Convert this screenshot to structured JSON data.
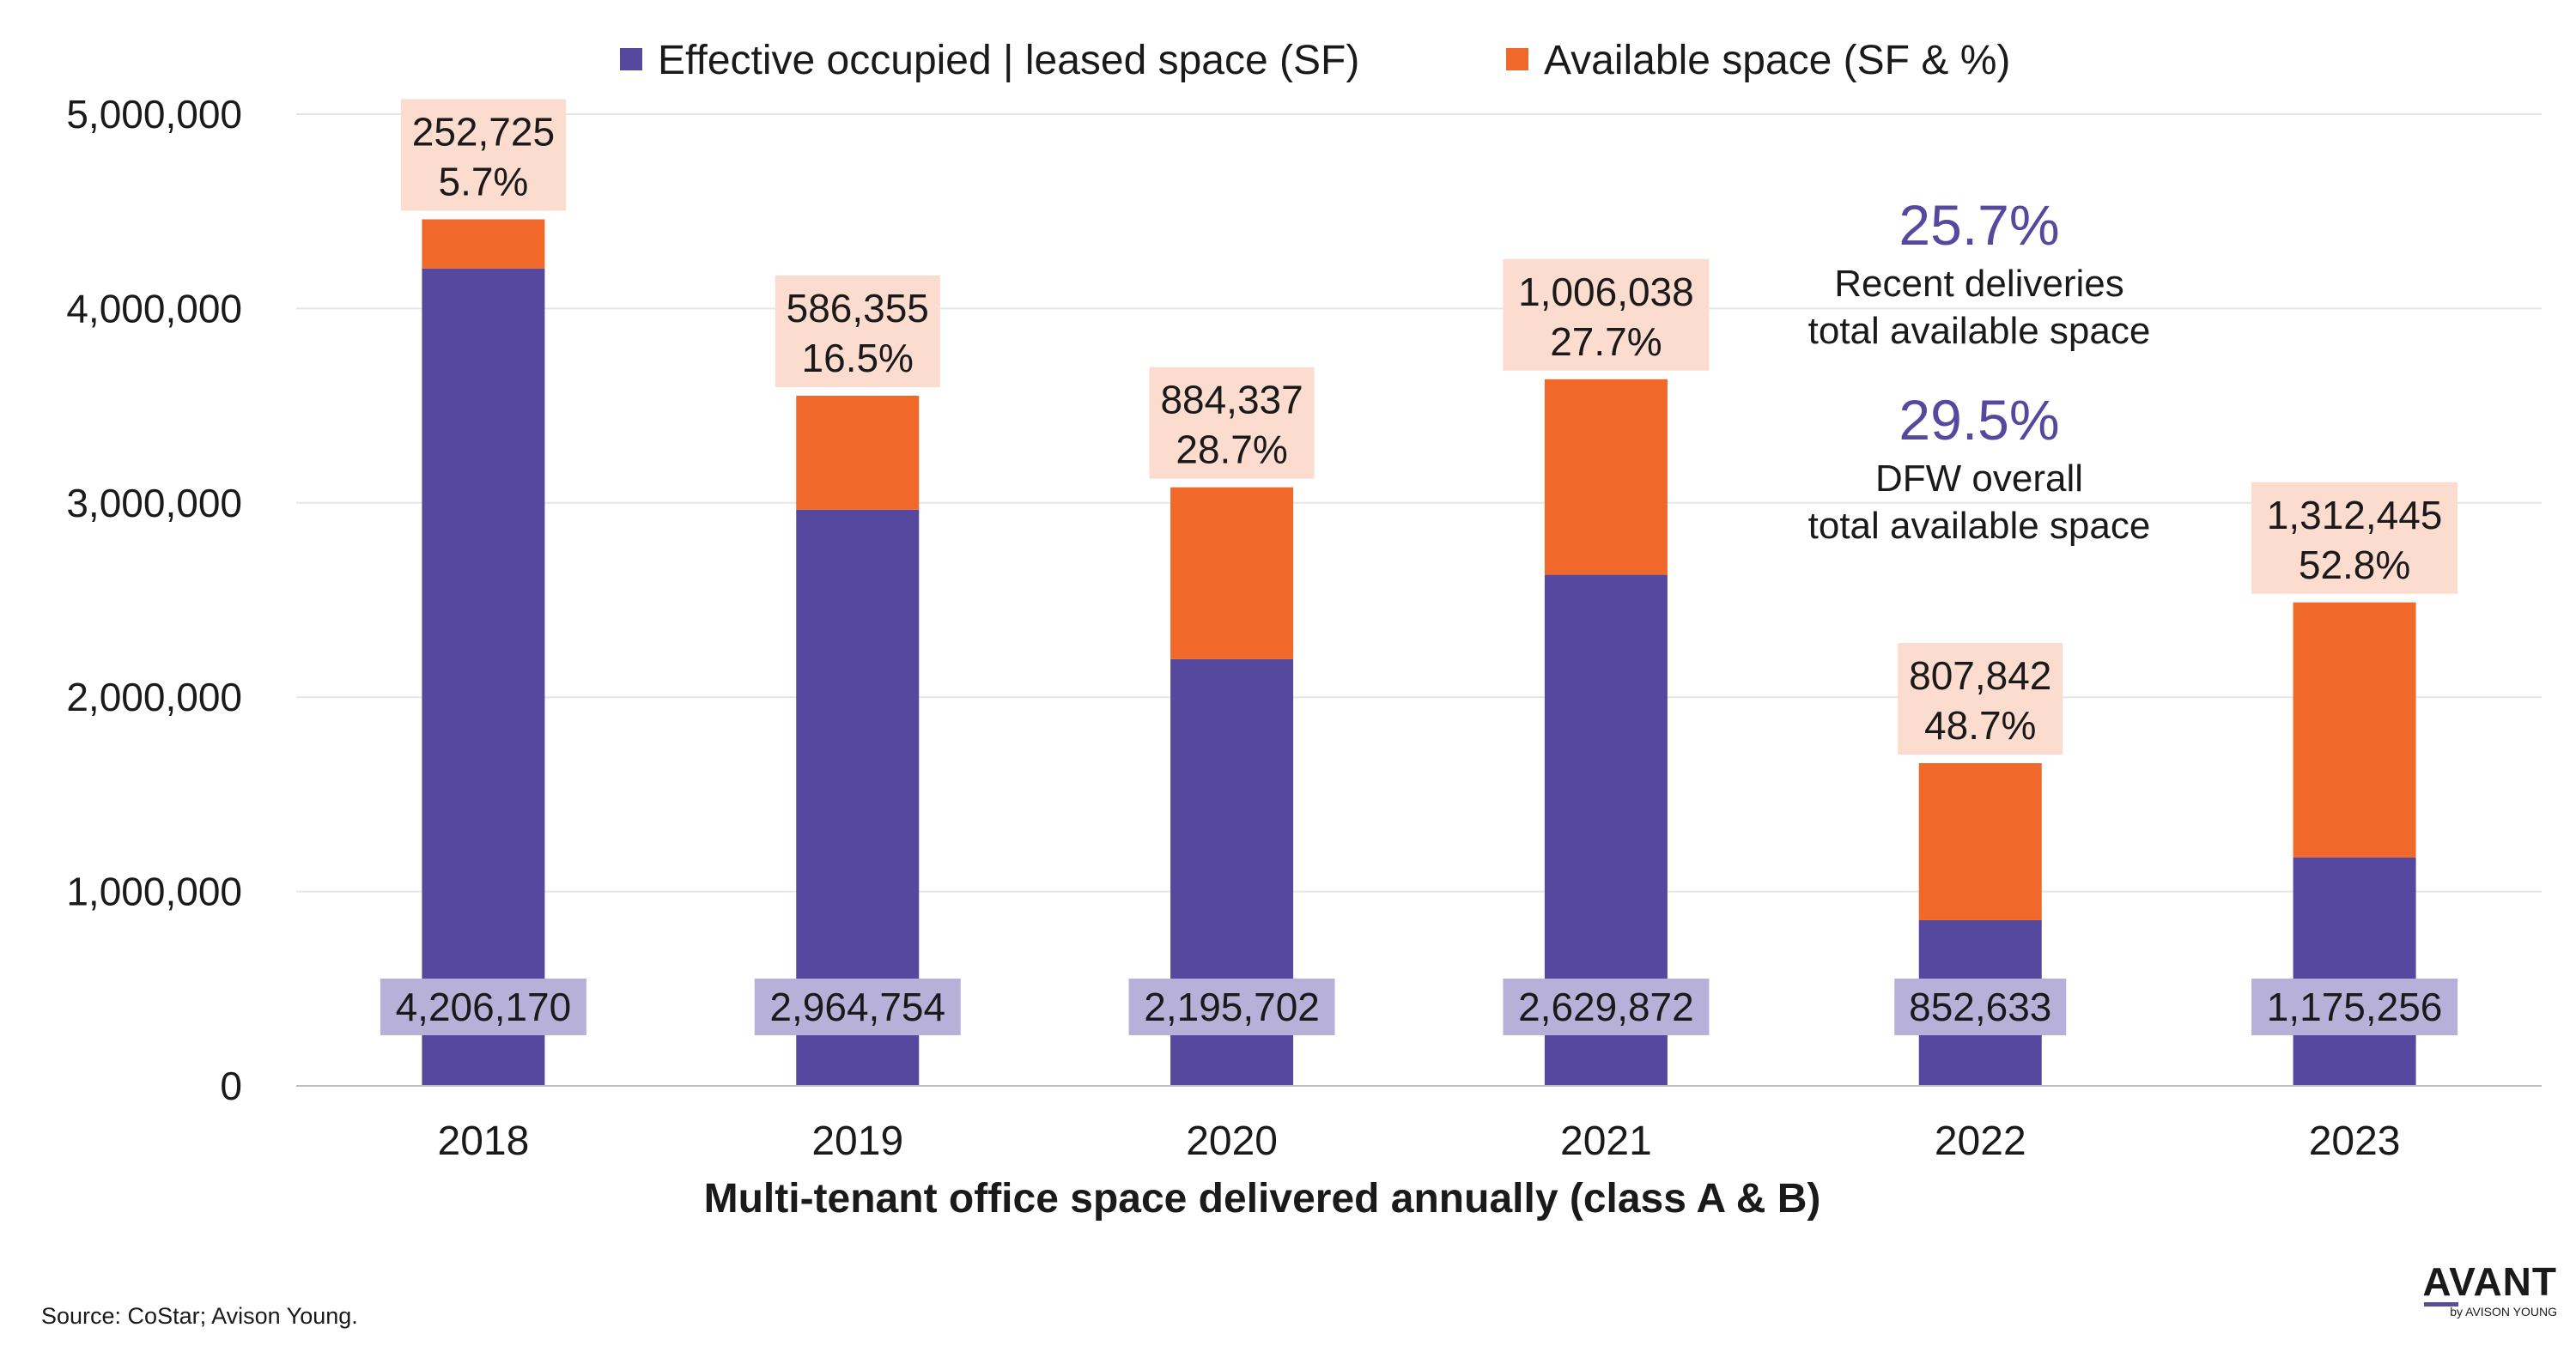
{
  "chart_data": {
    "type": "bar",
    "stacked": true,
    "categories": [
      "2018",
      "2019",
      "2020",
      "2021",
      "2022",
      "2023"
    ],
    "series": [
      {
        "name": "Effective occupied | leased space (SF)",
        "color": "#56489e",
        "label_bg": "#b7b1d9",
        "values": [
          4206170,
          2964754,
          2195702,
          2629872,
          852633,
          1175256
        ],
        "labels": [
          "4,206,170",
          "2,964,754",
          "2,195,702",
          "2,629,872",
          "852,633",
          "1,175,256"
        ]
      },
      {
        "name": "Available space (SF & %)",
        "color": "#f0682a",
        "label_bg": "#fbdccf",
        "values": [
          252725,
          586355,
          884337,
          1006038,
          807842,
          1312445
        ],
        "labels": [
          "252,725",
          "586,355",
          "884,337",
          "1,006,038",
          "807,842",
          "1,312,445"
        ],
        "percent_labels": [
          "5.7%",
          "16.5%",
          "28.7%",
          "27.7%",
          "48.7%",
          "52.8%"
        ]
      }
    ],
    "xlabel": "Multi-tenant office space delivered annually (class A & B)",
    "ylabel": "",
    "ylim": [
      0,
      5000000
    ],
    "yticks": [
      0,
      1000000,
      2000000,
      3000000,
      4000000,
      5000000
    ],
    "ytick_labels": [
      "0",
      "1,000,000",
      "2,000,000",
      "3,000,000",
      "4,000,000",
      "5,000,000"
    ],
    "grid": true,
    "legend_position": "top-center",
    "annotations": [
      {
        "value": "25.7%",
        "line1": "Recent deliveries",
        "line2": "total available space"
      },
      {
        "value": "29.5%",
        "line1": "DFW overall",
        "line2": "total available space"
      }
    ],
    "annotation_color": "#56489e"
  },
  "source": "Source: CoStar; Avison Young.",
  "logo": {
    "name": "AVANT",
    "sub": "by AVISON YOUNG"
  }
}
